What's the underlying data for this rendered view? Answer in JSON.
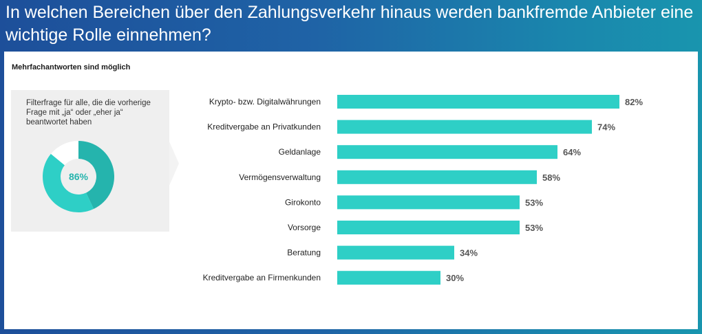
{
  "title": "In welchen Bereichen über den Zahlungsverkehr hinaus werden bankfremde Anbieter eine wichtige Rolle einnehmen?",
  "subtitle": "Mehrfachantworten sind möglich",
  "filter_note": "Filterfrage für alle, die die vorherige Frage mit „ja“ oder „eher ja“ beantwortet haben",
  "colors": {
    "bar": "#2ecfc6",
    "donut_main": "#25b4ad",
    "donut_secondary": "#2ecfc6",
    "donut_rest": "#ffffff"
  },
  "chart_data": [
    {
      "type": "pie",
      "title": "Filterfrage",
      "values": [
        43,
        43,
        14
      ],
      "labels": [
        "",
        "",
        ""
      ],
      "center_label": "86%"
    },
    {
      "type": "bar",
      "orientation": "horizontal",
      "xlim": [
        0,
        100
      ],
      "categories": [
        "Krypto- bzw. Digitalwährungen",
        "Kreditvergabe an Privatkunden",
        "Geldanlage",
        "Vermögensverwaltung",
        "Girokonto",
        "Vorsorge",
        "Beratung",
        "Kreditvergabe an Firmenkunden"
      ],
      "values": [
        82,
        74,
        64,
        58,
        53,
        53,
        34,
        30
      ],
      "value_labels": [
        "82%",
        "74%",
        "64%",
        "58%",
        "53%",
        "53%",
        "34%",
        "30%"
      ]
    }
  ]
}
